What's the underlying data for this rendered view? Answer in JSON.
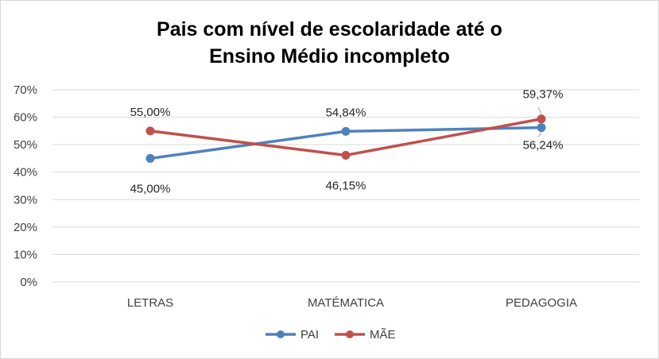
{
  "chart_data": {
    "type": "line",
    "title_lines": [
      "Pais com nível de escolaridade até o",
      "Ensino Médio incompleto"
    ],
    "categories": [
      "LETRAS",
      "MATÉMATICA",
      "PEDAGOGIA"
    ],
    "y_ticks": [
      "0%",
      "10%",
      "20%",
      "30%",
      "40%",
      "50%",
      "60%",
      "70%"
    ],
    "ylim": [
      0,
      70
    ],
    "grid": true,
    "legend_position": "bottom",
    "series": [
      {
        "name": "PAI",
        "color": "#4f81bd",
        "values": [
          45.0,
          54.84,
          56.24
        ],
        "labels": [
          "45,00%",
          "54,84%",
          "56,24%"
        ]
      },
      {
        "name": "MÃE",
        "color": "#c0504d",
        "values": [
          55.0,
          46.15,
          59.37
        ],
        "labels": [
          "55,00%",
          "46,15%",
          "59,37%"
        ]
      }
    ]
  }
}
